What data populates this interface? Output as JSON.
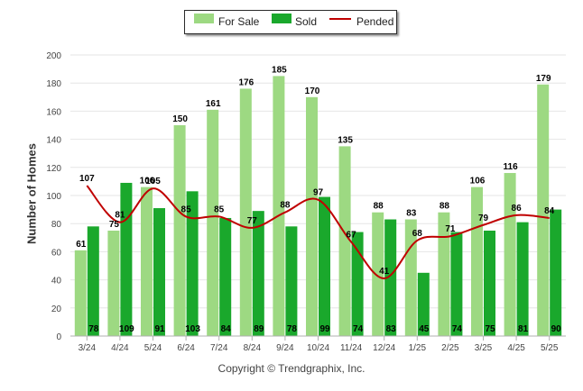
{
  "legend": {
    "for_sale": "For Sale",
    "sold": "Sold",
    "pended": "Pended"
  },
  "copyright": "Copyright © Trendgraphix, Inc.",
  "colors": {
    "for_sale": "#9dd982",
    "sold": "#1aa82c",
    "pended": "#c00000",
    "grid": "#e6e6e6"
  },
  "chart_data": {
    "type": "bar",
    "title": "",
    "xlabel": "",
    "ylabel": "Number of Homes",
    "ylim": [
      0,
      200
    ],
    "yticks": [
      0,
      20,
      40,
      60,
      80,
      100,
      120,
      140,
      160,
      180,
      200
    ],
    "grid": true,
    "legend_position": "top-center",
    "categories": [
      "3/24",
      "4/24",
      "5/24",
      "6/24",
      "7/24",
      "8/24",
      "9/24",
      "10/24",
      "11/24",
      "12/24",
      "1/25",
      "2/25",
      "3/25",
      "4/25",
      "5/25"
    ],
    "series": [
      {
        "name": "For Sale",
        "type": "bar",
        "values": [
          61,
          75,
          106,
          150,
          161,
          176,
          185,
          170,
          135,
          88,
          83,
          88,
          106,
          116,
          179
        ]
      },
      {
        "name": "Sold",
        "type": "bar",
        "values": [
          78,
          109,
          91,
          103,
          84,
          89,
          78,
          99,
          74,
          83,
          45,
          74,
          75,
          81,
          90
        ]
      },
      {
        "name": "Pended",
        "type": "line",
        "values": [
          107,
          81,
          105,
          85,
          85,
          77,
          88,
          97,
          67,
          41,
          68,
          71,
          79,
          86,
          84
        ]
      }
    ]
  }
}
